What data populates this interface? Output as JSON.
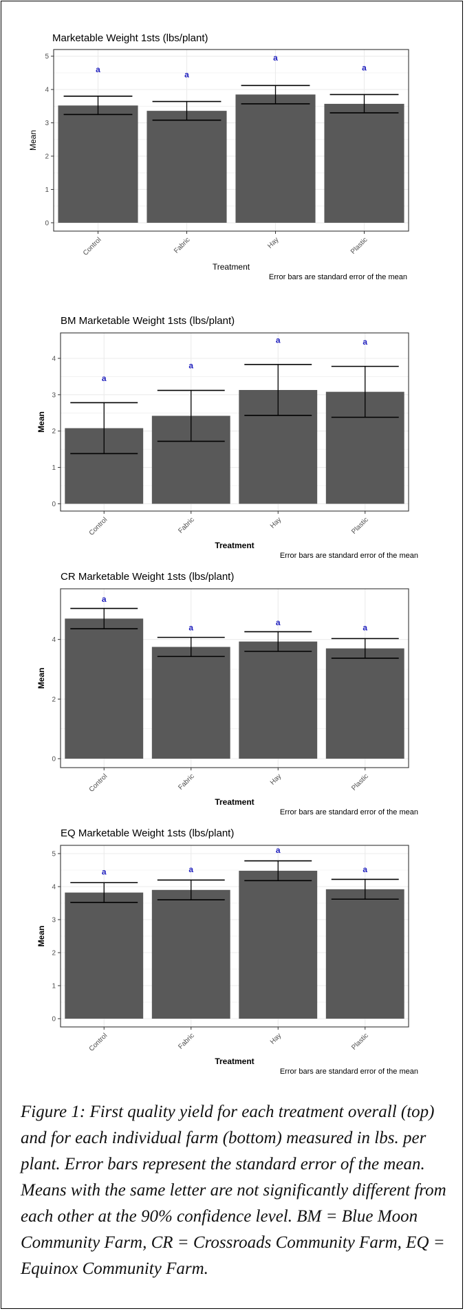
{
  "chart_data": [
    {
      "type": "bar",
      "title": "Marketable Weight 1sts (lbs/plant)",
      "xlabel": "Treatment",
      "ylabel": "Mean",
      "note": "Error bars are standard error of the mean",
      "categories": [
        "Control",
        "Fabric",
        "Hay",
        "Plastic"
      ],
      "values": [
        3.52,
        3.36,
        3.85,
        3.57
      ],
      "error_low": [
        3.25,
        3.08,
        3.57,
        3.3
      ],
      "error_high": [
        3.8,
        3.64,
        4.12,
        3.85
      ],
      "letters": [
        "a",
        "a",
        "a",
        "a"
      ],
      "letter_y": [
        4.6,
        4.45,
        4.95,
        4.65
      ],
      "yticks": [
        0,
        1,
        2,
        3,
        4,
        5
      ],
      "ylim": [
        -0.25,
        5.2
      ],
      "grid": true
    },
    {
      "type": "bar",
      "title": "BM Marketable Weight 1sts (lbs/plant)",
      "xlabel": "Treatment",
      "ylabel": "Mean",
      "note": "Error bars are standard error of the mean",
      "categories": [
        "Control",
        "Fabric",
        "Hay",
        "Plastic"
      ],
      "values": [
        2.08,
        2.42,
        3.13,
        3.08
      ],
      "error_low": [
        1.38,
        1.72,
        2.43,
        2.38
      ],
      "error_high": [
        2.78,
        3.12,
        3.83,
        3.78
      ],
      "letters": [
        "a",
        "a",
        "a",
        "a"
      ],
      "letter_y": [
        3.45,
        3.8,
        4.5,
        4.45
      ],
      "yticks": [
        0,
        1,
        2,
        3,
        4
      ],
      "ylim": [
        -0.2,
        4.7
      ],
      "grid": true
    },
    {
      "type": "bar",
      "title": "CR Marketable Weight 1sts (lbs/plant)",
      "xlabel": "Treatment",
      "ylabel": "Mean",
      "note": "Error bars are standard error of the mean",
      "categories": [
        "Control",
        "Fabric",
        "Hay",
        "Plastic"
      ],
      "values": [
        4.7,
        3.75,
        3.93,
        3.7
      ],
      "error_low": [
        4.36,
        3.43,
        3.6,
        3.37
      ],
      "error_high": [
        5.04,
        4.07,
        4.26,
        4.03
      ],
      "letters": [
        "a",
        "a",
        "a",
        "a"
      ],
      "letter_y": [
        5.35,
        4.4,
        4.57,
        4.4
      ],
      "yticks": [
        0,
        2,
        4
      ],
      "ylim": [
        -0.3,
        5.7
      ],
      "grid": true
    },
    {
      "type": "bar",
      "title": "EQ Marketable Weight 1sts (lbs/plant)",
      "xlabel": "Treatment",
      "ylabel": "Mean",
      "note": "Error bars are standard error of the mean",
      "categories": [
        "Control",
        "Fabric",
        "Hay",
        "Plastic"
      ],
      "values": [
        3.82,
        3.9,
        4.48,
        3.92
      ],
      "error_low": [
        3.52,
        3.6,
        4.18,
        3.62
      ],
      "error_high": [
        4.12,
        4.2,
        4.78,
        4.22
      ],
      "letters": [
        "a",
        "a",
        "a",
        "a"
      ],
      "letter_y": [
        4.45,
        4.52,
        5.1,
        4.52
      ],
      "yticks": [
        0,
        1,
        2,
        3,
        4,
        5
      ],
      "ylim": [
        -0.25,
        5.25
      ],
      "grid": true
    }
  ],
  "caption": "Figure 1:  First quality yield for each treatment overall (top) and for each individual farm (bottom) measured in lbs. per plant.  Error bars represent the standard error of the mean.  Means with the same letter are not significantly different from each other at the 90% confidence level.  BM = Blue Moon Community Farm, CR = Crossroads Community Farm, EQ = Equinox Community Farm.",
  "colors": {
    "bar": "#595959",
    "significance_letter": "#1f1fbf",
    "grid": "#ebebeb",
    "panel_border": "#333333"
  }
}
